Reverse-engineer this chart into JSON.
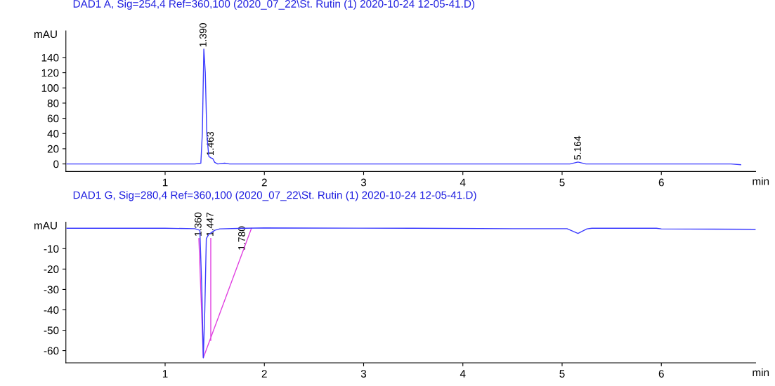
{
  "chart_data": [
    {
      "type": "line",
      "title": "DAD1 A, Sig=254,4 Ref=360,100 (2020_07_22\\St. Rutin (1) 2020-10-24 12-05-41.D)",
      "ylabel": "mAU",
      "xlabel": "min",
      "series": [
        {
          "color": "#3b3bff",
          "x": [
            0.01,
            1.2,
            1.3,
            1.36,
            1.375,
            1.39,
            1.405,
            1.42,
            1.44,
            1.46,
            1.48,
            1.5,
            1.53,
            1.6,
            1.65,
            1.75,
            2.6,
            2.8,
            3.0,
            4.5,
            5.0,
            5.08,
            5.16,
            5.24,
            5.3,
            6.7,
            6.8
          ],
          "values": [
            0,
            0,
            0,
            1,
            40,
            151,
            120,
            40,
            10,
            8,
            7,
            2,
            0,
            1,
            0,
            0,
            0,
            0,
            0,
            0,
            0,
            0,
            2.5,
            0,
            0,
            0,
            -1
          ]
        }
      ],
      "annotations": [
        {
          "text": "1.390",
          "x": 1.39,
          "y": 151
        },
        {
          "text": "1.463",
          "x": 1.463,
          "y": 8
        },
        {
          "text": "5.164",
          "x": 5.164,
          "y": 2.5
        }
      ],
      "xlim": [
        0,
        6.95
      ],
      "xticks": [
        1,
        2,
        3,
        4,
        5,
        6
      ],
      "ylim": [
        -10,
        175
      ],
      "yticks": [
        0,
        20,
        40,
        60,
        80,
        100,
        120,
        140
      ],
      "grid": false,
      "legend": false
    },
    {
      "type": "line",
      "title": "DAD1 G, Sig=280,4 Ref=360,100 (2020_07_22\\St. Rutin (1) 2020-10-24 12-05-41.D)",
      "ylabel": "mAU",
      "xlabel": "min",
      "series": [
        {
          "color": "#3b3bff",
          "x": [
            0.01,
            1.0,
            1.3,
            1.35,
            1.37,
            1.385,
            1.4,
            1.415,
            1.44,
            1.47,
            1.5,
            1.55,
            1.8,
            2.0,
            3.5,
            4.5,
            5.05,
            5.16,
            5.25,
            5.3,
            5.95,
            6.0,
            6.95
          ],
          "values": [
            0,
            0,
            -0.2,
            -1,
            -30,
            -63.5,
            -40,
            -5,
            -3,
            -2,
            -1,
            -0.3,
            0,
            0.2,
            0,
            -0.2,
            -0.2,
            -2.5,
            -0.3,
            0,
            0,
            -0.3,
            -0.5
          ]
        },
        {
          "color": "#e040e0",
          "x": [
            1.34,
            1.385,
            1.87,
            1.6,
            1.46,
            1.46
          ],
          "values": [
            -5,
            -63.5,
            0,
            null,
            -5,
            -55
          ]
        }
      ],
      "annotations": [
        {
          "text": "1.360",
          "x": 1.34,
          "y": -5
        },
        {
          "text": "1.447",
          "x": 1.46,
          "y": -5
        },
        {
          "text": "1.780",
          "x": 1.78,
          "y": -11.8
        }
      ],
      "xlim": [
        0,
        6.95
      ],
      "xticks": [
        1,
        2,
        3,
        4,
        5,
        6
      ],
      "ylim": [
        -66,
        3
      ],
      "yticks": [
        -10,
        -20,
        -30,
        -40,
        -50,
        -60
      ],
      "grid": false,
      "legend": false
    }
  ]
}
